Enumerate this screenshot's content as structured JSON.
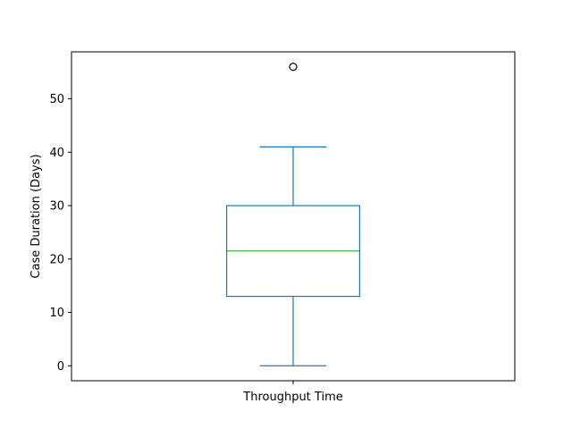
{
  "chart_data": {
    "type": "box",
    "categories": [
      "Throughput Time"
    ],
    "ylabel": "Case Duration (Days)",
    "xlabel": "",
    "ylim": [
      -2.8,
      58.8
    ],
    "yticks": [
      0,
      10,
      20,
      30,
      40,
      50
    ],
    "boxes": [
      {
        "category": "Throughput Time",
        "whisker_low": 0,
        "q1": 13,
        "median": 21.5,
        "q3": 30,
        "whisker_high": 41,
        "outliers": [
          56
        ]
      }
    ],
    "grid": false,
    "colors": {
      "box": "#1f77b4",
      "median": "#2ca02c",
      "outlier": "#000000",
      "axes": "#000000"
    }
  }
}
